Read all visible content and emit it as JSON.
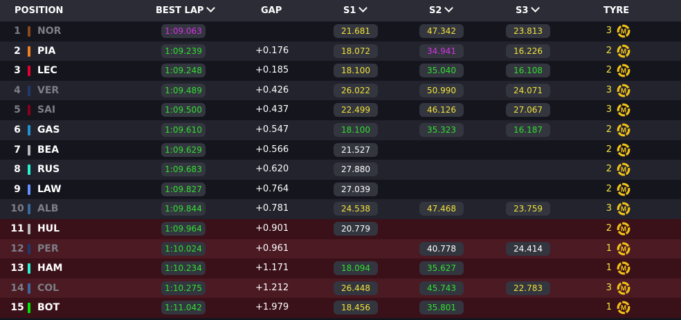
{
  "header": {
    "position": "POSITION",
    "best_lap": "BEST LAP",
    "gap": "GAP",
    "s1": "S1",
    "s2": "S2",
    "s3": "S3",
    "tyre": "TYRE"
  },
  "colors": {
    "purple": "#d633e8",
    "green": "#32e030",
    "yellow": "#f2e33a",
    "white": "#ffffff",
    "tyre_medium": "#f2c318"
  },
  "rows": [
    {
      "pos": "1",
      "code": "NOR",
      "team_color": "#8a4a1c",
      "dim": true,
      "elim": false,
      "best_lap": "1:09.063",
      "best_lap_color": "purple",
      "gap": "",
      "s1": "21.681",
      "s1_color": "yellow",
      "s2": "47.342",
      "s2_color": "yellow",
      "s3": "23.813",
      "s3_color": "yellow",
      "tyre_laps": "3",
      "tyre_icon": "medium-tyre-icon"
    },
    {
      "pos": "2",
      "code": "PIA",
      "team_color": "#f58020",
      "dim": false,
      "elim": false,
      "best_lap": "1:09.239",
      "best_lap_color": "green",
      "gap": "+0.176",
      "s1": "18.072",
      "s1_color": "yellow",
      "s2": "34.941",
      "s2_color": "purple",
      "s3": "16.226",
      "s3_color": "yellow",
      "tyre_laps": "2",
      "tyre_icon": "medium-tyre-icon"
    },
    {
      "pos": "3",
      "code": "LEC",
      "team_color": "#e8002d",
      "dim": false,
      "elim": false,
      "best_lap": "1:09.248",
      "best_lap_color": "green",
      "gap": "+0.185",
      "s1": "18.100",
      "s1_color": "yellow",
      "s2": "35.040",
      "s2_color": "green",
      "s3": "16.108",
      "s3_color": "green",
      "tyre_laps": "2",
      "tyre_icon": "medium-tyre-icon"
    },
    {
      "pos": "4",
      "code": "VER",
      "team_color": "#1e3a6e",
      "dim": true,
      "elim": false,
      "best_lap": "1:09.489",
      "best_lap_color": "green",
      "gap": "+0.426",
      "s1": "26.022",
      "s1_color": "yellow",
      "s2": "50.990",
      "s2_color": "yellow",
      "s3": "24.071",
      "s3_color": "yellow",
      "tyre_laps": "3",
      "tyre_icon": "medium-tyre-icon"
    },
    {
      "pos": "5",
      "code": "SAI",
      "team_color": "#8a0019",
      "dim": true,
      "elim": false,
      "best_lap": "1:09.500",
      "best_lap_color": "green",
      "gap": "+0.437",
      "s1": "22.499",
      "s1_color": "yellow",
      "s2": "46.126",
      "s2_color": "yellow",
      "s3": "27.067",
      "s3_color": "yellow",
      "tyre_laps": "3",
      "tyre_icon": "medium-tyre-icon"
    },
    {
      "pos": "6",
      "code": "GAS",
      "team_color": "#2293d1",
      "dim": false,
      "elim": false,
      "best_lap": "1:09.610",
      "best_lap_color": "green",
      "gap": "+0.547",
      "s1": "18.100",
      "s1_color": "green",
      "s2": "35.323",
      "s2_color": "green",
      "s3": "16.187",
      "s3_color": "green",
      "tyre_laps": "2",
      "tyre_icon": "medium-tyre-icon"
    },
    {
      "pos": "7",
      "code": "BEA",
      "team_color": "#b6babd",
      "dim": false,
      "elim": false,
      "best_lap": "1:09.629",
      "best_lap_color": "green",
      "gap": "+0.566",
      "s1": "21.527",
      "s1_color": "white",
      "s2": "",
      "s2_color": "white",
      "s3": "",
      "s3_color": "white",
      "tyre_laps": "2",
      "tyre_icon": "medium-tyre-icon"
    },
    {
      "pos": "8",
      "code": "RUS",
      "team_color": "#27f4d2",
      "dim": false,
      "elim": false,
      "best_lap": "1:09.683",
      "best_lap_color": "green",
      "gap": "+0.620",
      "s1": "27.880",
      "s1_color": "white",
      "s2": "",
      "s2_color": "white",
      "s3": "",
      "s3_color": "white",
      "tyre_laps": "2",
      "tyre_icon": "medium-tyre-icon"
    },
    {
      "pos": "9",
      "code": "LAW",
      "team_color": "#6692ff",
      "dim": false,
      "elim": false,
      "best_lap": "1:09.827",
      "best_lap_color": "green",
      "gap": "+0.764",
      "s1": "27.039",
      "s1_color": "white",
      "s2": "",
      "s2_color": "white",
      "s3": "",
      "s3_color": "white",
      "tyre_laps": "2",
      "tyre_icon": "medium-tyre-icon"
    },
    {
      "pos": "10",
      "code": "ALB",
      "team_color": "#3a6a9e",
      "dim": true,
      "elim": false,
      "best_lap": "1:09.844",
      "best_lap_color": "green",
      "gap": "+0.781",
      "s1": "24.538",
      "s1_color": "yellow",
      "s2": "47.468",
      "s2_color": "yellow",
      "s3": "23.759",
      "s3_color": "yellow",
      "tyre_laps": "3",
      "tyre_icon": "medium-tyre-icon"
    },
    {
      "pos": "11",
      "code": "HUL",
      "team_color": "#b6babd",
      "dim": false,
      "elim": true,
      "best_lap": "1:09.964",
      "best_lap_color": "green",
      "gap": "+0.901",
      "s1": "20.779",
      "s1_color": "white",
      "s2": "",
      "s2_color": "white",
      "s3": "",
      "s3_color": "white",
      "tyre_laps": "2",
      "tyre_icon": "medium-tyre-icon"
    },
    {
      "pos": "12",
      "code": "PER",
      "team_color": "#1e3a6e",
      "dim": true,
      "elim": true,
      "best_lap": "1:10.024",
      "best_lap_color": "green",
      "gap": "+0.961",
      "s1": "",
      "s1_color": "white",
      "s2": "40.778",
      "s2_color": "white",
      "s3": "24.414",
      "s3_color": "white",
      "tyre_laps": "1",
      "tyre_icon": "medium-tyre-icon"
    },
    {
      "pos": "13",
      "code": "HAM",
      "team_color": "#27f4d2",
      "dim": false,
      "elim": true,
      "best_lap": "1:10.234",
      "best_lap_color": "green",
      "gap": "+1.171",
      "s1": "18.094",
      "s1_color": "green",
      "s2": "35.627",
      "s2_color": "green",
      "s3": "",
      "s3_color": "white",
      "tyre_laps": "1",
      "tyre_icon": "medium-tyre-icon"
    },
    {
      "pos": "14",
      "code": "COL",
      "team_color": "#3a6a9e",
      "dim": true,
      "elim": true,
      "best_lap": "1:10.275",
      "best_lap_color": "green",
      "gap": "+1.212",
      "s1": "26.448",
      "s1_color": "yellow",
      "s2": "45.743",
      "s2_color": "green",
      "s3": "22.783",
      "s3_color": "yellow",
      "tyre_laps": "3",
      "tyre_icon": "medium-tyre-icon"
    },
    {
      "pos": "15",
      "code": "BOT",
      "team_color": "#00e701",
      "dim": false,
      "elim": true,
      "best_lap": "1:11.042",
      "best_lap_color": "green",
      "gap": "+1.979",
      "s1": "18.456",
      "s1_color": "yellow",
      "s2": "35.801",
      "s2_color": "green",
      "s3": "",
      "s3_color": "white",
      "tyre_laps": "1",
      "tyre_icon": "medium-tyre-icon"
    }
  ]
}
